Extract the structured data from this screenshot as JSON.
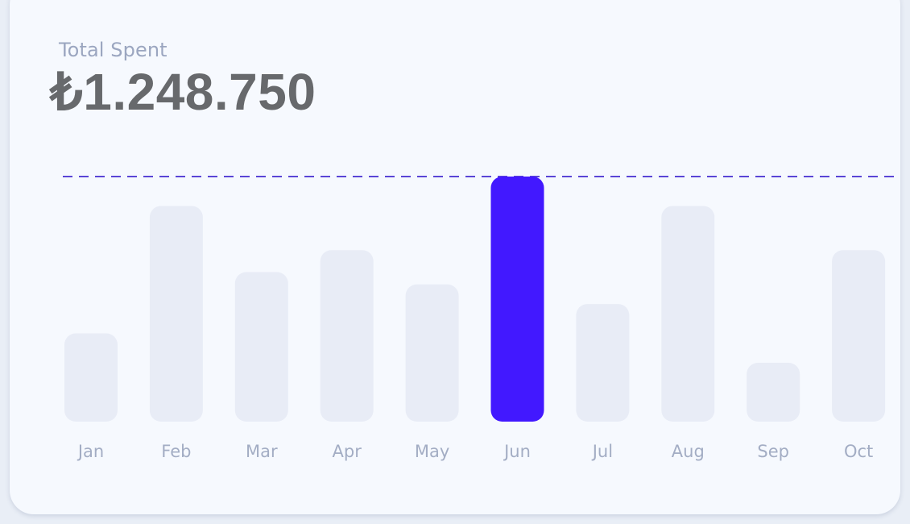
{
  "card": {
    "label": "Total Spent",
    "amount": "₺1.248.750"
  },
  "colors": {
    "bar": "#e8ecf6",
    "highlight": "#4218ff",
    "reference_line": "#5a45d6",
    "label": "#a3adc4"
  },
  "chart_data": {
    "type": "bar",
    "categories": [
      "Jan",
      "Feb",
      "Mar",
      "Apr",
      "May",
      "Jun",
      "Jul",
      "Aug",
      "Sep",
      "Oct"
    ],
    "values": [
      36,
      88,
      61,
      70,
      56,
      100,
      48,
      88,
      24,
      70
    ],
    "ylim": [
      0,
      100
    ],
    "highlight": "Jun",
    "reference_line": 100,
    "grid": false,
    "xlabel": "",
    "ylabel": ""
  }
}
